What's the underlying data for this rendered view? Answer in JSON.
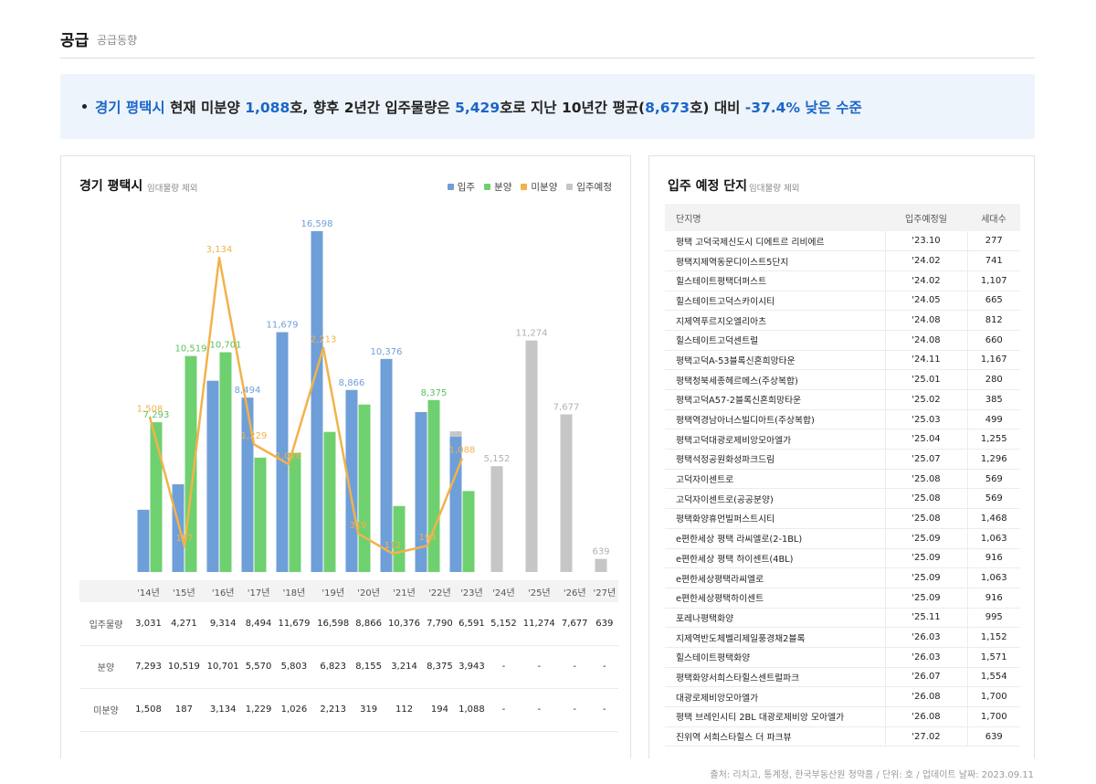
{
  "header": {
    "title": "공급",
    "subtitle": "공급동향"
  },
  "summary": {
    "region": "경기 평택시",
    "p1": " 현재 미분양 ",
    "unsold": "1,088",
    "p2": "호, 향후 2년간 입주물량은 ",
    "supply2y": "5,429",
    "p3": "호로 지난 10년간 평균(",
    "avg10y": "8,673",
    "p4": "호) 대비 ",
    "change": "-37.4% 낮은 수준"
  },
  "chart_panel": {
    "title": "경기 평택시",
    "subtitle": "임대물량 제외",
    "legend": [
      {
        "label": "입주",
        "color": "#6f9fd8"
      },
      {
        "label": "분양",
        "color": "#6fd06f"
      },
      {
        "label": "미분양",
        "color": "#f2b24a"
      },
      {
        "label": "입주예정",
        "color": "#c6c6c6"
      }
    ]
  },
  "chart_data": {
    "type": "bar",
    "categories": [
      "'14년",
      "'15년",
      "'16년",
      "'17년",
      "'18년",
      "'19년",
      "'20년",
      "'21년",
      "'22년",
      "'23년",
      "'24년",
      "'25년",
      "'26년",
      "'27년"
    ],
    "series": [
      {
        "name": "입주",
        "type": "bar",
        "color": "#6f9fd8",
        "values": [
          3031,
          4271,
          9314,
          8494,
          11679,
          16598,
          8866,
          10376,
          7790,
          6591,
          null,
          null,
          null,
          null
        ],
        "display": [
          "3,031",
          "4,271",
          "9,314",
          "8,494",
          "11,679",
          "16,598",
          "8,866",
          "10,376",
          "7,790",
          "6,591",
          "5,152",
          "11,274",
          "7,677",
          "639"
        ]
      },
      {
        "name": "분양",
        "type": "bar",
        "color": "#6fd06f",
        "values": [
          7293,
          10519,
          10701,
          5570,
          5803,
          6823,
          8155,
          3214,
          8375,
          3943,
          null,
          null,
          null,
          null
        ],
        "display": [
          "7,293",
          "10,519",
          "10,701",
          "5,570",
          "5,803",
          "6,823",
          "8,155",
          "3,214",
          "8,375",
          "3,943",
          "-",
          "-",
          "-",
          "-"
        ]
      },
      {
        "name": "미분양",
        "type": "line",
        "color": "#f2b24a",
        "values": [
          1508,
          187,
          3134,
          1229,
          1026,
          2213,
          319,
          112,
          194,
          1088,
          null,
          null,
          null,
          null
        ],
        "display": [
          "1,508",
          "187",
          "3,134",
          "1,229",
          "1,026",
          "2,213",
          "319",
          "112",
          "194",
          "1,088",
          "-",
          "-",
          "-",
          "-"
        ]
      },
      {
        "name": "입주예정",
        "type": "bar",
        "color": "#c6c6c6",
        "values": [
          null,
          null,
          null,
          null,
          null,
          null,
          null,
          null,
          null,
          259,
          5152,
          11274,
          7677,
          639
        ]
      }
    ],
    "row_labels": [
      "입주물량",
      "분양",
      "미분양"
    ],
    "bar_labels": {
      "입주": [
        null,
        null,
        null,
        "8,494",
        "11,679",
        "16,598",
        "8,866",
        "10,376",
        null,
        null
      ],
      "분양": [
        "7,293",
        "10,519",
        "10,701",
        null,
        null,
        null,
        null,
        null,
        "8,375",
        null
      ],
      "미분양": [
        "1,508",
        "187",
        "3,134",
        "1,229",
        "1,026",
        "2,213",
        "319",
        "112",
        "194",
        "1,088"
      ],
      "입주예정": [
        null,
        null,
        null,
        null,
        null,
        null,
        null,
        null,
        null,
        null,
        "5,152",
        "11,274",
        "7,677",
        "639"
      ]
    }
  },
  "projects_panel": {
    "title": "입주 예정 단지",
    "subtitle": "임대물량 제외",
    "columns": [
      "단지명",
      "입주예정일",
      "세대수"
    ],
    "rows": [
      [
        "평택 고덕국제신도시 디에트르 리비에르",
        "'23.10",
        "277"
      ],
      [
        "평택지제역동문디이스트5단지",
        "'24.02",
        "741"
      ],
      [
        "힐스테이트평택더퍼스트",
        "'24.02",
        "1,107"
      ],
      [
        "힐스테이트고덕스카이시티",
        "'24.05",
        "665"
      ],
      [
        "지제역푸르지오엘리아츠",
        "'24.08",
        "812"
      ],
      [
        "힐스테이트고덕센트럴",
        "'24.08",
        "660"
      ],
      [
        "평택고덕A-53블록신혼희망타운",
        "'24.11",
        "1,167"
      ],
      [
        "평택청북세종헤르메스(주상복합)",
        "'25.01",
        "280"
      ],
      [
        "평택고덕A57-2블록신혼희망타운",
        "'25.02",
        "385"
      ],
      [
        "평택역경남아너스빌디아트(주상복합)",
        "'25.03",
        "499"
      ],
      [
        "평택고덕대광로제비앙모아엘가",
        "'25.04",
        "1,255"
      ],
      [
        "평택석정공원화성파크드림",
        "'25.07",
        "1,296"
      ],
      [
        "고덕자이센트로",
        "'25.08",
        "569"
      ],
      [
        "고덕자이센트로(공공분양)",
        "'25.08",
        "569"
      ],
      [
        "평택화양휴먼빌퍼스트시티",
        "'25.08",
        "1,468"
      ],
      [
        "e편한세상 평택 라씨엘로(2-1BL)",
        "'25.09",
        "1,063"
      ],
      [
        "e편한세상 평택 하이센트(4BL)",
        "'25.09",
        "916"
      ],
      [
        "e편한세상평택라씨엘로",
        "'25.09",
        "1,063"
      ],
      [
        "e편한세상평택하이센트",
        "'25.09",
        "916"
      ],
      [
        "포레나평택화양",
        "'25.11",
        "995"
      ],
      [
        "지제역반도체벨리제일풍경채2블록",
        "'26.03",
        "1,152"
      ],
      [
        "힐스테이트평택화양",
        "'26.03",
        "1,571"
      ],
      [
        "평택화양서희스타힐스센트럴파크",
        "'26.07",
        "1,554"
      ],
      [
        "대광로제비앙모아엘가",
        "'26.08",
        "1,700"
      ],
      [
        "평택 브레인시티 2BL 대광로제비앙 모아엘가",
        "'26.08",
        "1,700"
      ],
      [
        "진위역 서희스타힐스 더 파크뷰",
        "'27.02",
        "639"
      ]
    ]
  },
  "footnote": "출처: 리치고, 통계청, 한국부동산원 청약홈 / 단위: 호 / 업데이트 날짜: 2023.09.11"
}
